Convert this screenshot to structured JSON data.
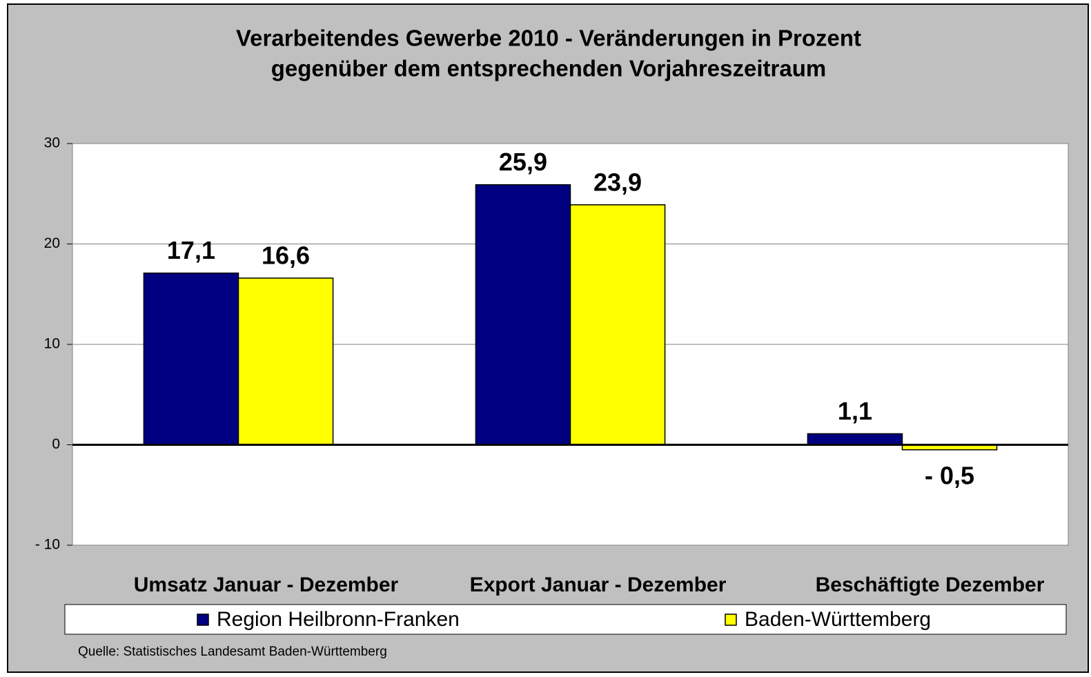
{
  "chart_data": {
    "type": "bar",
    "title": [
      "Verarbeitendes Gewerbe 2010 - Veränderungen in Prozent",
      "gegenüber dem entsprechenden Vorjahreszeitraum"
    ],
    "categories": [
      "Umsatz Januar - Dezember",
      "Export Januar - Dezember",
      "Beschäftigte Dezember"
    ],
    "series": [
      {
        "name": "Region Heilbronn-Franken",
        "color": "#000080",
        "values": [
          17.1,
          25.9,
          1.1
        ],
        "value_labels": [
          "17,1",
          "25,9",
          "1,1"
        ]
      },
      {
        "name": "Baden-Württemberg",
        "color": "#ffff00",
        "values": [
          16.6,
          23.9,
          -0.5
        ],
        "value_labels": [
          "16,6",
          "23,9",
          "- 0,5"
        ]
      }
    ],
    "ylim": [
      -10,
      30
    ],
    "yticks": [
      {
        "value": -10,
        "label": "- 10"
      },
      0,
      10,
      20,
      30
    ],
    "grid": true,
    "legend": "bottom",
    "source": "Quelle: Statistisches Landesamt Baden-Württemberg"
  }
}
